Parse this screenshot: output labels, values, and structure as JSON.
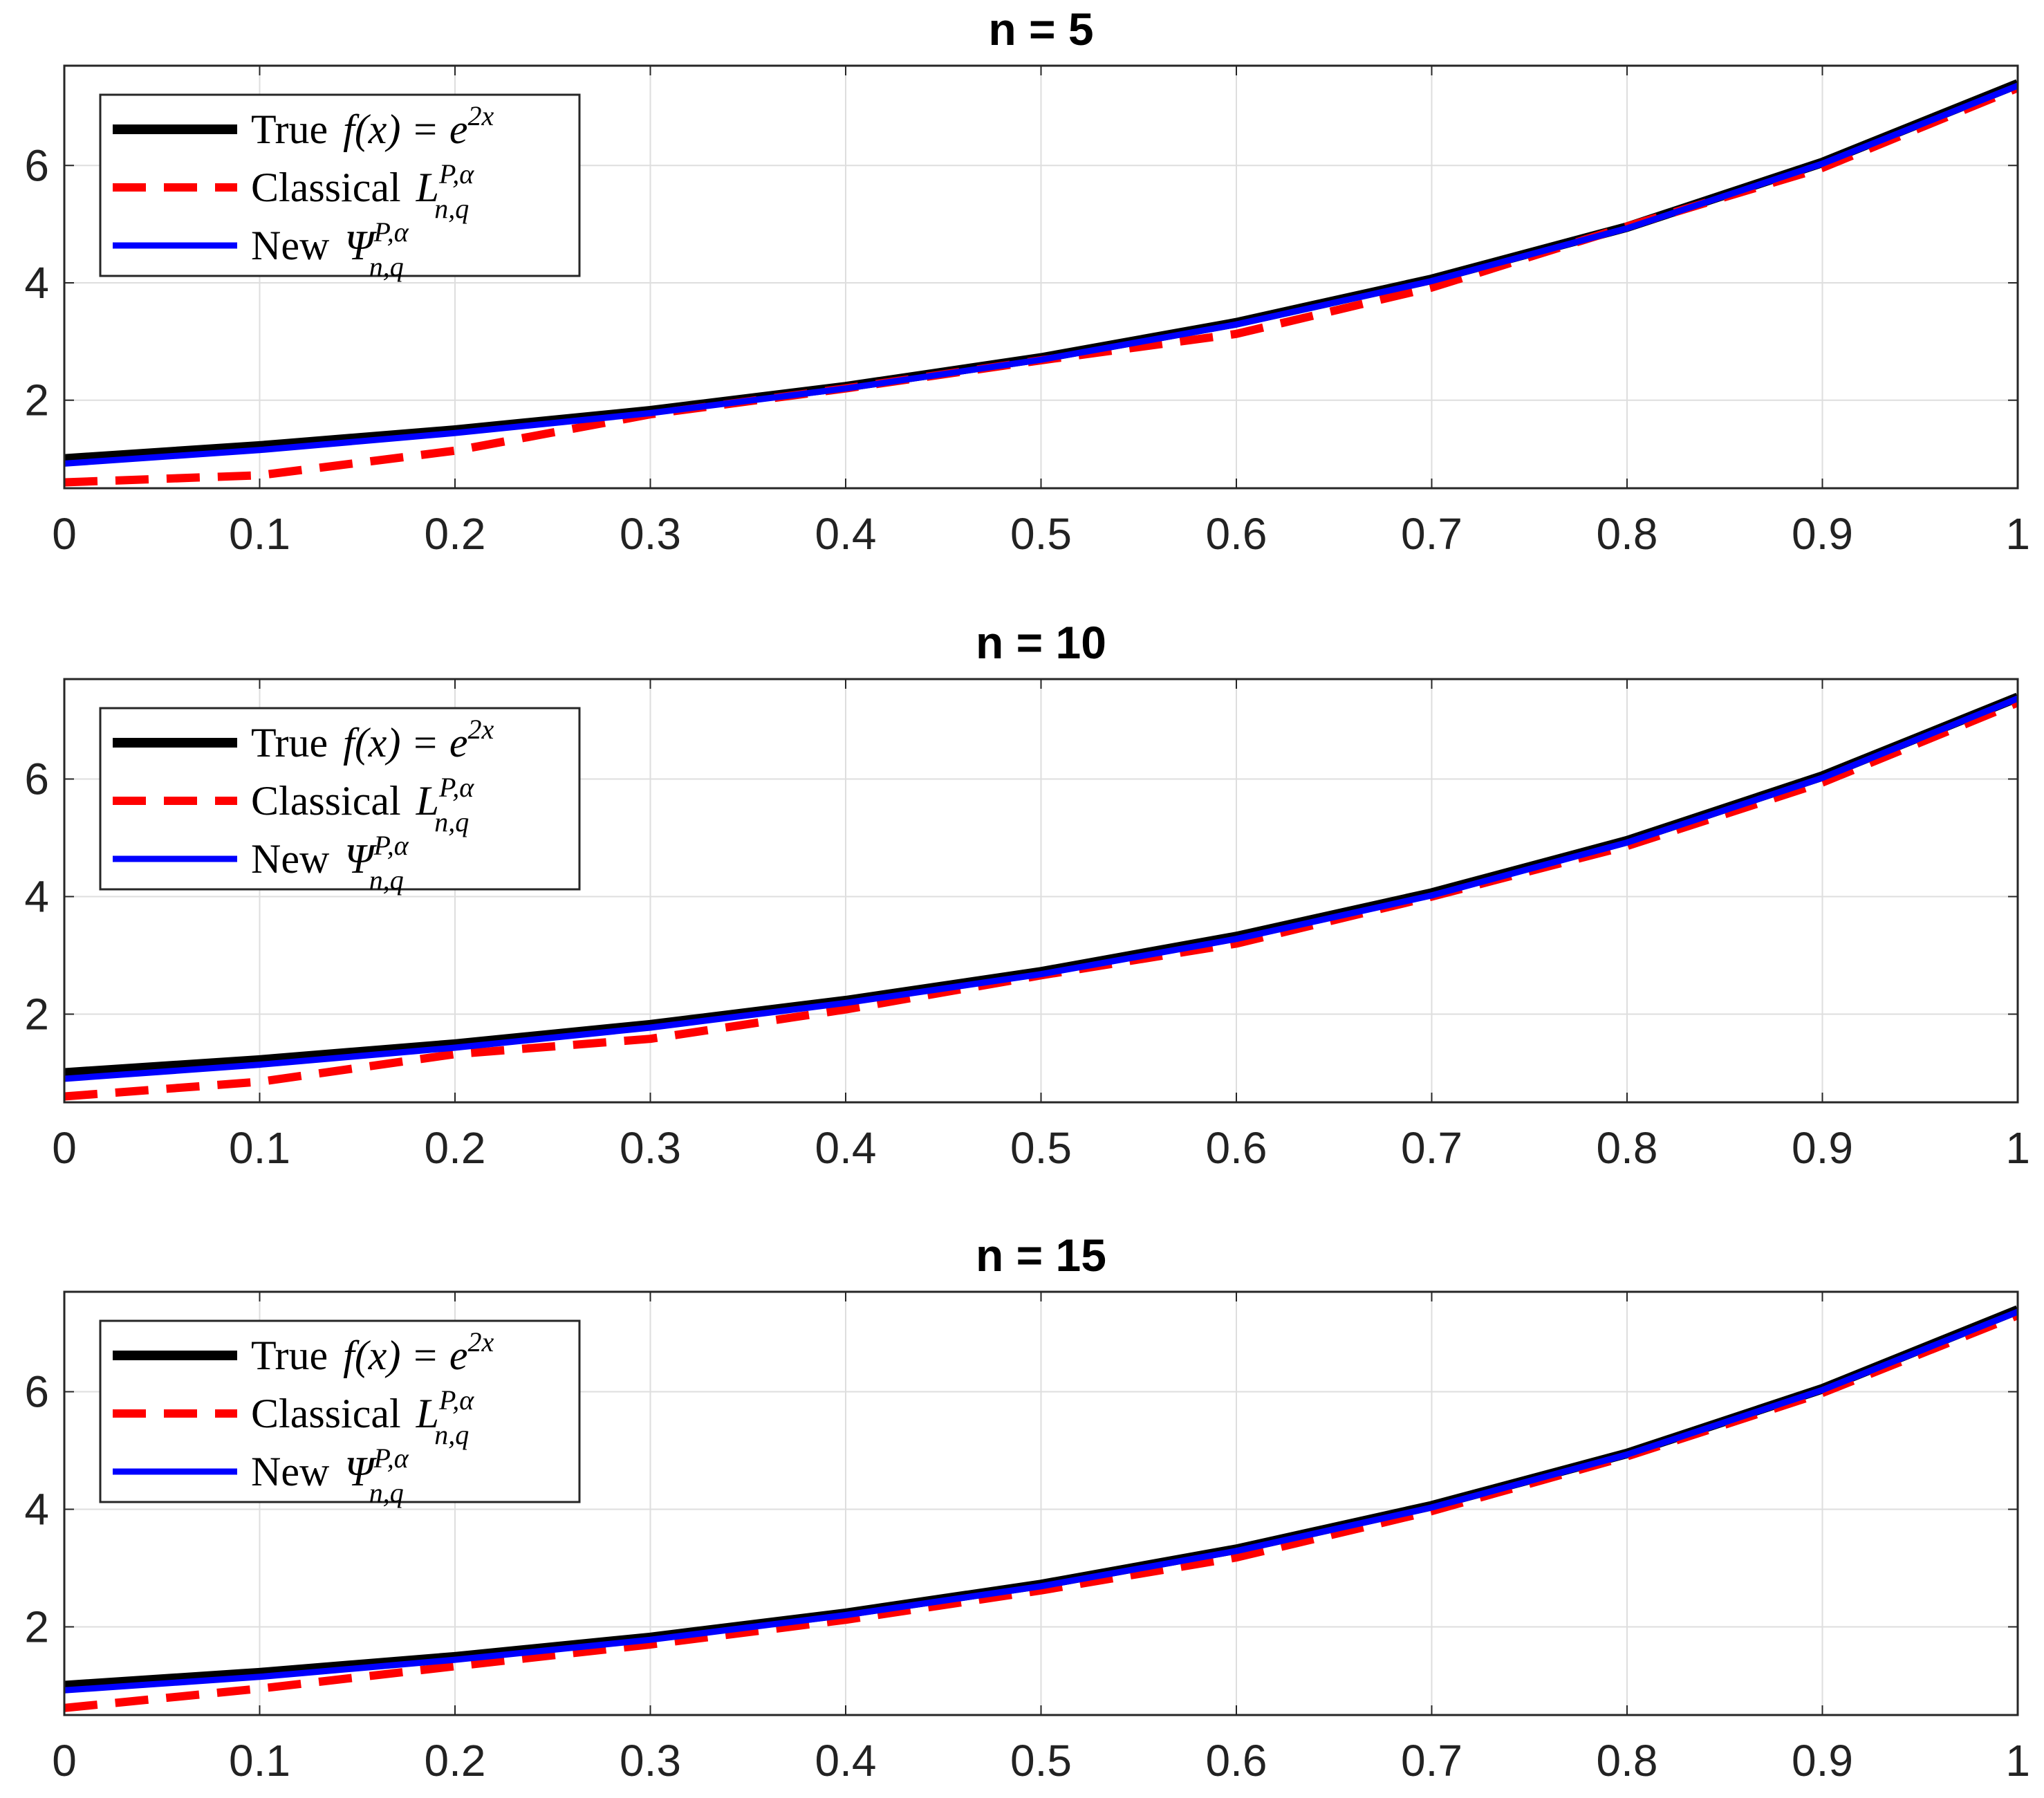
{
  "chart_data": [
    {
      "type": "line",
      "title": "n = 5",
      "n": 5,
      "xlim": [
        0,
        1
      ],
      "ylim": [
        0.5,
        7.7
      ],
      "xticks": [
        "0",
        "0.1",
        "0.2",
        "0.3",
        "0.4",
        "0.5",
        "0.6",
        "0.7",
        "0.8",
        "0.9",
        "1"
      ],
      "yticks": [
        "2",
        "4",
        "6"
      ],
      "grid": true,
      "legend_position": "top-left",
      "legend": [
        {
          "name": "True",
          "math": "f(x) = e",
          "sup": "2x",
          "sub": ""
        },
        {
          "name": "Classical",
          "math": "L",
          "sup": "P,α",
          "sub": "n,q"
        },
        {
          "name": "New",
          "math": "Ψ",
          "sup": "P,α",
          "sub": "n,q"
        }
      ],
      "series": [
        {
          "name": "True f(x) = e^{2x}",
          "color": "#000000",
          "style": "solid",
          "function": "exp(2x)",
          "x": [
            0,
            0.1,
            0.2,
            0.3,
            0.4,
            0.5,
            0.6,
            0.7,
            0.8,
            0.9,
            1.0
          ],
          "values": [
            1.0,
            1.22,
            1.49,
            1.82,
            2.23,
            2.72,
            3.32,
            4.06,
            4.95,
            6.05,
            7.39
          ]
        },
        {
          "name": "Classical L_{n,q}^{P,α}",
          "color": "#ff0000",
          "style": "dashed",
          "x": [
            0,
            0.1,
            0.2,
            0.3,
            0.4,
            0.5,
            0.6,
            0.7,
            0.8,
            0.9,
            1.0
          ],
          "values": [
            0.6,
            0.72,
            1.14,
            1.76,
            2.2,
            2.68,
            3.13,
            3.92,
            4.96,
            5.96,
            7.32
          ]
        },
        {
          "name": "New Ψ_{n,q}^{P,α}",
          "color": "#0000ff",
          "style": "solid",
          "x": [
            0,
            0.1,
            0.2,
            0.3,
            0.4,
            0.5,
            0.6,
            0.7,
            0.8,
            0.9,
            1.0
          ],
          "values": [
            0.92,
            1.15,
            1.44,
            1.78,
            2.2,
            2.69,
            3.29,
            4.03,
            4.93,
            6.03,
            7.36
          ]
        }
      ]
    },
    {
      "type": "line",
      "title": "n = 10",
      "n": 10,
      "xlim": [
        0,
        1
      ],
      "ylim": [
        0.5,
        7.7
      ],
      "xticks": [
        "0",
        "0.1",
        "0.2",
        "0.3",
        "0.4",
        "0.5",
        "0.6",
        "0.7",
        "0.8",
        "0.9",
        "1"
      ],
      "yticks": [
        "2",
        "4",
        "6"
      ],
      "grid": true,
      "legend_position": "top-left",
      "legend": [
        {
          "name": "True",
          "math": "f(x) = e",
          "sup": "2x",
          "sub": ""
        },
        {
          "name": "Classical",
          "math": "L",
          "sup": "P,α",
          "sub": "n,q"
        },
        {
          "name": "New",
          "math": "Ψ",
          "sup": "P,α",
          "sub": "n,q"
        }
      ],
      "series": [
        {
          "name": "True f(x) = e^{2x}",
          "color": "#000000",
          "style": "solid",
          "function": "exp(2x)",
          "x": [
            0,
            0.1,
            0.2,
            0.3,
            0.4,
            0.5,
            0.6,
            0.7,
            0.8,
            0.9,
            1.0
          ],
          "values": [
            1.0,
            1.22,
            1.49,
            1.82,
            2.23,
            2.72,
            3.32,
            4.06,
            4.95,
            6.05,
            7.39
          ]
        },
        {
          "name": "Classical L_{n,q}^{P,α}",
          "color": "#ff0000",
          "style": "dashed",
          "x": [
            0,
            0.1,
            0.2,
            0.3,
            0.4,
            0.5,
            0.6,
            0.7,
            0.8,
            0.9,
            1.0
          ],
          "values": [
            0.6,
            0.85,
            1.32,
            1.58,
            2.08,
            2.66,
            3.2,
            4.0,
            4.86,
            5.94,
            7.3
          ]
        },
        {
          "name": "New Ψ_{n,q}^{P,α}",
          "color": "#0000ff",
          "style": "solid",
          "x": [
            0,
            0.1,
            0.2,
            0.3,
            0.4,
            0.5,
            0.6,
            0.7,
            0.8,
            0.9,
            1.0
          ],
          "values": [
            0.9,
            1.14,
            1.43,
            1.77,
            2.19,
            2.68,
            3.28,
            4.02,
            4.92,
            6.02,
            7.37
          ]
        }
      ]
    },
    {
      "type": "line",
      "title": "n = 15",
      "n": 15,
      "xlim": [
        0,
        1
      ],
      "ylim": [
        0.5,
        7.7
      ],
      "xticks": [
        "0",
        "0.1",
        "0.2",
        "0.3",
        "0.4",
        "0.5",
        "0.6",
        "0.7",
        "0.8",
        "0.9",
        "1"
      ],
      "yticks": [
        "2",
        "4",
        "6"
      ],
      "grid": true,
      "legend_position": "top-left",
      "legend": [
        {
          "name": "True",
          "math": "f(x) = e",
          "sup": "2x",
          "sub": ""
        },
        {
          "name": "Classical",
          "math": "L",
          "sup": "P,α",
          "sub": "n,q"
        },
        {
          "name": "New",
          "math": "Ψ",
          "sup": "P,α",
          "sub": "n,q"
        }
      ],
      "series": [
        {
          "name": "True f(x) = e^{2x}",
          "color": "#000000",
          "style": "solid",
          "function": "exp(2x)",
          "x": [
            0,
            0.1,
            0.2,
            0.3,
            0.4,
            0.5,
            0.6,
            0.7,
            0.8,
            0.9,
            1.0
          ],
          "values": [
            1.0,
            1.22,
            1.49,
            1.82,
            2.23,
            2.72,
            3.32,
            4.06,
            4.95,
            6.05,
            7.39
          ]
        },
        {
          "name": "Classical L_{n,q}^{P,α}",
          "color": "#ff0000",
          "style": "dashed",
          "x": [
            0,
            0.1,
            0.2,
            0.3,
            0.4,
            0.5,
            0.6,
            0.7,
            0.8,
            0.9,
            1.0
          ],
          "values": [
            0.62,
            0.95,
            1.33,
            1.7,
            2.12,
            2.62,
            3.18,
            3.97,
            4.9,
            5.98,
            7.3
          ]
        },
        {
          "name": "New Ψ_{n,q}^{P,α}",
          "color": "#0000ff",
          "style": "solid",
          "x": [
            0,
            0.1,
            0.2,
            0.3,
            0.4,
            0.5,
            0.6,
            0.7,
            0.8,
            0.9,
            1.0
          ],
          "values": [
            0.92,
            1.15,
            1.44,
            1.78,
            2.2,
            2.69,
            3.29,
            4.03,
            4.93,
            6.03,
            7.36
          ]
        }
      ]
    }
  ]
}
